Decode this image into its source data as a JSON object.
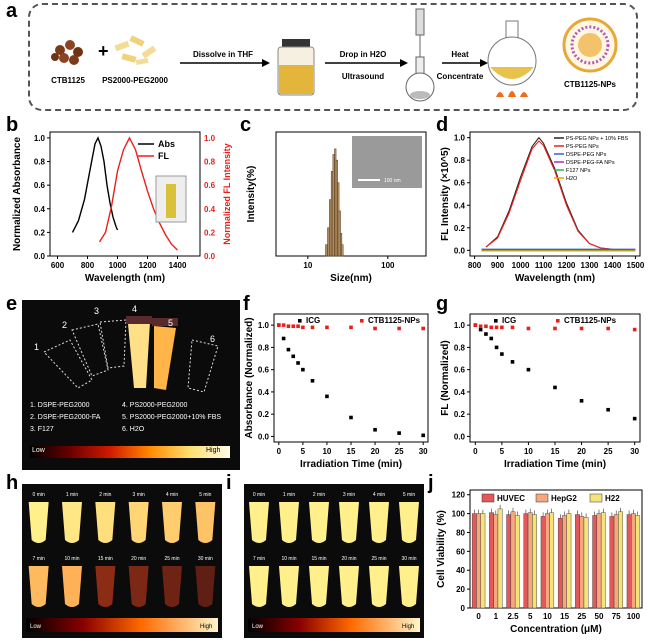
{
  "panels": {
    "a": "a",
    "b": "b",
    "c": "c",
    "d": "d",
    "e": "e",
    "f": "f",
    "g": "g",
    "h": "h",
    "i": "i",
    "j": "j"
  },
  "scheme": {
    "reagent1": "CTB1125",
    "plus": "+",
    "reagent2": "PS2000-PEG2000",
    "step1": "Dissolve in THF",
    "step2a": "Drop in H2O",
    "step2b": "Ultrasound",
    "step3a": "Heat",
    "step3b": "Concentrate",
    "product": "CTB1125-NPs"
  },
  "e_legend": [
    "1. DSPE-PEG2000",
    "2. DSPE-PEG2000-FA",
    "3. F127",
    "4. PS2000-PEG2000",
    "5. PS2000-PEG2000+10% FBS",
    "6. H2O"
  ],
  "e_scale": {
    "low": "Low",
    "high": "High"
  },
  "h_times": [
    "0 min",
    "1 min",
    "2 min",
    "3 min",
    "4 min",
    "5 min",
    "7 min",
    "10 min",
    "15 min",
    "20 min",
    "25 min",
    "30 min"
  ],
  "h_scale": {
    "low": "Low",
    "high": "High"
  },
  "colors": {
    "ink": "#000000",
    "red": "#e8201c",
    "abs": "#000000"
  },
  "chart_data": [
    {
      "panel": "b",
      "type": "line",
      "xlabel": "Wavelength (nm)",
      "ylabel": "Normalized Absorbance",
      "y2label": "Normalized FL Intensity",
      "xlim": [
        550,
        1550
      ],
      "ylim": [
        0,
        1.05
      ],
      "xticks": [
        600,
        800,
        1000,
        1200,
        1400
      ],
      "yticks": [
        "0.0",
        "0.2",
        "0.4",
        "0.6",
        "0.8",
        "1.0"
      ],
      "series": [
        {
          "name": "Abs",
          "x": [
            700,
            740,
            780,
            820,
            850,
            870,
            890,
            910,
            930,
            950,
            970,
            990,
            1000
          ],
          "y": [
            0.2,
            0.3,
            0.48,
            0.75,
            0.95,
            1.0,
            0.93,
            0.8,
            0.6,
            0.45,
            0.33,
            0.25,
            0.22
          ]
        },
        {
          "name": "FL",
          "x": [
            880,
            920,
            960,
            1000,
            1040,
            1080,
            1120,
            1160,
            1200,
            1240,
            1280,
            1320,
            1360,
            1400
          ],
          "y": [
            0.12,
            0.2,
            0.42,
            0.72,
            0.9,
            1.0,
            0.9,
            0.72,
            0.55,
            0.4,
            0.28,
            0.18,
            0.1,
            0.05
          ]
        }
      ]
    },
    {
      "panel": "c",
      "type": "bar",
      "xlabel": "Size(nm)",
      "ylabel": "Intensity(%)",
      "log_x": true,
      "xticks": [
        10,
        100
      ],
      "x": [
        17,
        18,
        19,
        20,
        21,
        22,
        23,
        24,
        25,
        26,
        27
      ],
      "values": [
        2,
        5,
        10,
        15,
        18,
        19,
        17,
        13,
        8,
        4,
        2
      ],
      "scale_text": "100 nm"
    },
    {
      "panel": "d",
      "type": "line",
      "xlabel": "Wavelength (nm)",
      "ylabel": "FL Intensity (×10^5)",
      "xlim": [
        780,
        1520
      ],
      "ylim": [
        -0.05,
        1.05
      ],
      "xticks": [
        800,
        900,
        1000,
        1100,
        1200,
        1300,
        1400,
        1500
      ],
      "yticks": [
        "0.0",
        "0.2",
        "0.4",
        "0.6",
        "0.8",
        "1.0"
      ],
      "series": [
        {
          "name": "PS-PEG NPs + 10% FBS",
          "color": "#3b1f1f",
          "x": [
            850,
            900,
            950,
            1000,
            1050,
            1080,
            1100,
            1150,
            1200,
            1250,
            1300,
            1350,
            1400
          ],
          "y": [
            0.03,
            0.12,
            0.35,
            0.65,
            0.92,
            1.0,
            0.95,
            0.72,
            0.42,
            0.18,
            0.06,
            0.02,
            0.01
          ]
        },
        {
          "name": "PS-PEG NPs",
          "color": "#e8201c",
          "x": [
            850,
            900,
            950,
            1000,
            1050,
            1080,
            1100,
            1150,
            1200,
            1250,
            1300,
            1350,
            1400
          ],
          "y": [
            0.03,
            0.11,
            0.33,
            0.62,
            0.9,
            0.97,
            0.93,
            0.7,
            0.4,
            0.17,
            0.06,
            0.02,
            0.01
          ]
        },
        {
          "name": "DSPE-PEG NPs",
          "color": "#3b5bdb",
          "x": [
            830,
            1500
          ],
          "y": [
            0.01,
            0.01
          ]
        },
        {
          "name": "DSPE-PEG-FA NPs",
          "color": "#9c36b5",
          "x": [
            830,
            1500
          ],
          "y": [
            0.005,
            0.005
          ]
        },
        {
          "name": "F127 NPs",
          "color": "#37b24d",
          "x": [
            830,
            1500
          ],
          "y": [
            0.0,
            0.0
          ]
        },
        {
          "name": "H2O",
          "color": "#f59f00",
          "x": [
            830,
            1500
          ],
          "y": [
            -0.005,
            -0.005
          ]
        }
      ]
    },
    {
      "panel": "f",
      "type": "scatter",
      "xlabel": "Irradiation Time (min)",
      "ylabel": "Absorbance (Normalized)",
      "xlim": [
        -1,
        31
      ],
      "ylim": [
        -0.05,
        1.1
      ],
      "xticks": [
        0,
        5,
        10,
        15,
        20,
        25,
        30
      ],
      "yticks": [
        "0.0",
        "0.2",
        "0.4",
        "0.6",
        "0.8",
        "1.0"
      ],
      "series": [
        {
          "name": "ICG",
          "x": [
            0,
            1,
            2,
            3,
            4,
            5,
            7,
            10,
            15,
            20,
            25,
            30
          ],
          "y": [
            1.0,
            0.88,
            0.78,
            0.72,
            0.66,
            0.6,
            0.5,
            0.36,
            0.17,
            0.06,
            0.03,
            0.01
          ]
        },
        {
          "name": "CTB1125-NPs",
          "x": [
            0,
            1,
            2,
            3,
            4,
            5,
            7,
            10,
            15,
            20,
            25,
            30
          ],
          "y": [
            1.0,
            1.0,
            0.99,
            0.99,
            0.99,
            0.98,
            0.98,
            0.98,
            0.98,
            0.97,
            0.97,
            0.97
          ]
        }
      ]
    },
    {
      "panel": "g",
      "type": "scatter",
      "xlabel": "Irradiation Time (min)",
      "ylabel": "FL (Normalized)",
      "xlim": [
        -1,
        31
      ],
      "ylim": [
        -0.05,
        1.1
      ],
      "xticks": [
        0,
        5,
        10,
        15,
        20,
        25,
        30
      ],
      "yticks": [
        "0.0",
        "0.2",
        "0.4",
        "0.6",
        "0.8",
        "1.0"
      ],
      "series": [
        {
          "name": "ICG",
          "x": [
            0,
            1,
            2,
            3,
            4,
            5,
            7,
            10,
            15,
            20,
            25,
            30
          ],
          "y": [
            1.0,
            0.96,
            0.92,
            0.88,
            0.8,
            0.74,
            0.67,
            0.6,
            0.44,
            0.32,
            0.24,
            0.16
          ]
        },
        {
          "name": "CTB1125-NPs",
          "x": [
            0,
            1,
            2,
            3,
            4,
            5,
            7,
            10,
            15,
            20,
            25,
            30
          ],
          "y": [
            1.0,
            0.99,
            0.99,
            0.98,
            0.98,
            0.98,
            0.98,
            0.97,
            0.97,
            0.97,
            0.97,
            0.96
          ]
        }
      ]
    },
    {
      "panel": "j",
      "type": "bar",
      "xlabel": "Concentration (μM)",
      "ylabel": "Cell Viability (%)",
      "ylim": [
        0,
        125
      ],
      "yticks": [
        "0",
        "20",
        "40",
        "60",
        "80",
        "100",
        "120"
      ],
      "categories": [
        "0",
        "1",
        "2.5",
        "5",
        "10",
        "15",
        "25",
        "50",
        "75",
        "100"
      ],
      "series": [
        {
          "name": "HUVEC",
          "color": "#e5585a",
          "values": [
            100,
            101,
            99,
            100,
            97,
            95,
            99,
            98,
            97,
            99
          ]
        },
        {
          "name": "HepG2",
          "color": "#f5a77e",
          "values": [
            100,
            99,
            102,
            101,
            100,
            98,
            97,
            100,
            99,
            100
          ]
        },
        {
          "name": "H22",
          "color": "#f6e27a",
          "values": [
            100,
            105,
            98,
            99,
            101,
            100,
            96,
            101,
            102,
            98
          ]
        }
      ]
    }
  ]
}
